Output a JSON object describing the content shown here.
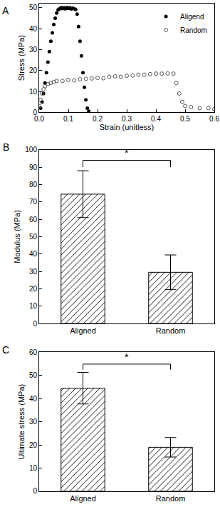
{
  "chart_data": [
    {
      "type": "scatter",
      "title": "A",
      "x_label": "Strain (unitless)",
      "y_label": "Stress (MPa)",
      "xlim": [
        0,
        0.6
      ],
      "xticks": [
        {
          "value": 0,
          "label": "0.0"
        },
        0.1,
        0.2,
        0.3,
        0.4,
        0.5,
        0.6
      ],
      "ylim": [
        0,
        52
      ],
      "yticks": [
        0,
        10,
        20,
        30,
        40,
        50
      ],
      "grid": false,
      "legend": "top right",
      "series": [
        {
          "name": "Aligend",
          "color": "#000000",
          "marker": "circle",
          "x": [
            0.005,
            0.01,
            0.015,
            0.02,
            0.025,
            0.03,
            0.035,
            0.04,
            0.045,
            0.05,
            0.055,
            0.06,
            0.065,
            0.07,
            0.075,
            0.08,
            0.085,
            0.09,
            0.095,
            0.1,
            0.105,
            0.11,
            0.115,
            0.12,
            0.125,
            0.13,
            0.135,
            0.14,
            0.145,
            0.15,
            0.155,
            0.16,
            0.165,
            0.17
          ],
          "values": [
            2,
            5,
            9,
            14,
            19,
            24,
            29,
            34,
            38,
            42,
            45,
            47.5,
            49,
            49.5,
            50,
            49.6,
            50,
            49.5,
            50,
            49.7,
            50,
            49.4,
            49.8,
            49.5,
            49.2,
            47,
            41,
            34,
            27,
            19,
            12,
            6,
            2,
            0.5
          ]
        },
        {
          "name": "Random",
          "color": "#555555",
          "marker": "circle-open",
          "x": [
            0,
            0.005,
            0.01,
            0.015,
            0.02,
            0.03,
            0.04,
            0.05,
            0.06,
            0.08,
            0.1,
            0.12,
            0.14,
            0.16,
            0.18,
            0.2,
            0.22,
            0.24,
            0.26,
            0.28,
            0.3,
            0.32,
            0.34,
            0.36,
            0.38,
            0.4,
            0.42,
            0.44,
            0.46,
            0.47,
            0.48,
            0.49,
            0.5,
            0.52,
            0.55,
            0.58,
            0.6
          ],
          "values": [
            3,
            6,
            9,
            11,
            12.5,
            13.5,
            14,
            14.5,
            15,
            15,
            15.5,
            15.3,
            15.8,
            16,
            16.2,
            16.5,
            16.3,
            17,
            17.2,
            17,
            17.5,
            17.6,
            18,
            18,
            18.3,
            18.5,
            18.5,
            18.6,
            18.5,
            14,
            9,
            5,
            3,
            2.5,
            2,
            2,
            1.5
          ]
        }
      ]
    },
    {
      "type": "bar",
      "title": "B",
      "y_label": "Modulus (MPa)",
      "categories": [
        "Aligned",
        "Random"
      ],
      "values": [
        74.5,
        29.5
      ],
      "errors": [
        13.5,
        10
      ],
      "color": "#000000",
      "ylim": [
        0,
        100
      ],
      "yticks": [
        0,
        10,
        20,
        30,
        40,
        50,
        60,
        70,
        80,
        90,
        100
      ],
      "grid": false,
      "annotations": [
        {
          "text": "*",
          "between": [
            "Aligned",
            "Random"
          ]
        }
      ]
    },
    {
      "type": "bar",
      "title": "C",
      "y_label": "Ultimate stress (MPa)",
      "categories": [
        "Aligned",
        "Random"
      ],
      "values": [
        44.5,
        19
      ],
      "errors": [
        6.8,
        4.2
      ],
      "color": "#000000",
      "ylim": [
        0,
        60
      ],
      "yticks": [
        0,
        10,
        20,
        30,
        40,
        50,
        60
      ],
      "grid": false,
      "annotations": [
        {
          "text": "*",
          "between": [
            "Aligned",
            "Random"
          ]
        }
      ]
    }
  ]
}
